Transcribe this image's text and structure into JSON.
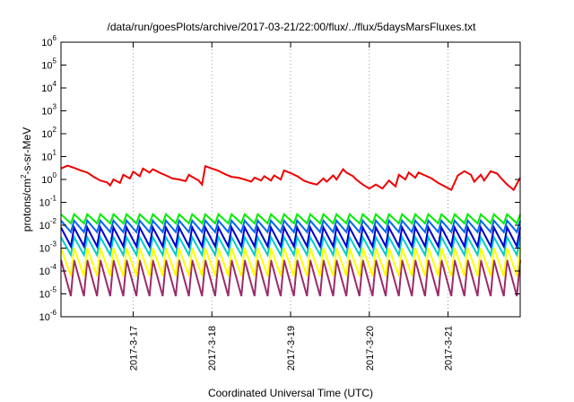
{
  "chart_data": {
    "type": "line",
    "title": "/data/run/goesPlots/archive/2017-03-21/22:00/flux/../flux/5daysMarsFluxes.txt",
    "xlabel": "Coordinated Universal Time (UTC)",
    "ylabel": {
      "base": "protons/cm",
      "sup": "2",
      "rest": "-s-sr-MeV"
    },
    "xlim": [
      "2017-03-16 02:00",
      "2017-03-21 22:00"
    ],
    "ylim": [
      1e-06,
      1000000.0
    ],
    "yscale": "log",
    "x_ticks": [
      "2017-3-17",
      "2017-3-18",
      "2017-3-19",
      "2017-3-20",
      "2017-3-21"
    ],
    "y_ticks": [
      {
        "base": "10",
        "exp": "-6"
      },
      {
        "base": "10",
        "exp": "-5"
      },
      {
        "base": "10",
        "exp": "-4"
      },
      {
        "base": "10",
        "exp": "-3"
      },
      {
        "base": "10",
        "exp": "-2"
      },
      {
        "base": "10",
        "exp": "-1"
      },
      {
        "base": "10",
        "exp": "0"
      },
      {
        "base": "10",
        "exp": "1"
      },
      {
        "base": "10",
        "exp": "2"
      },
      {
        "base": "10",
        "exp": "3"
      },
      {
        "base": "10",
        "exp": "4"
      },
      {
        "base": "10",
        "exp": "5"
      },
      {
        "base": "10",
        "exp": "6"
      }
    ],
    "grid": "x-only-dashed",
    "legend": "none",
    "series": [
      {
        "color": "#ee0000",
        "width": 2,
        "x": [
          "2017-03-16 02:00",
          "2017-03-16 04:00",
          "2017-03-16 06:00",
          "2017-03-16 08:00",
          "2017-03-16 10:00",
          "2017-03-16 12:00",
          "2017-03-16 14:00",
          "2017-03-16 16:00",
          "2017-03-16 17:00",
          "2017-03-16 18:00",
          "2017-03-16 20:00",
          "2017-03-16 21:00",
          "2017-03-16 23:00",
          "2017-03-17 00:00",
          "2017-03-17 02:00",
          "2017-03-17 03:00",
          "2017-03-17 05:00",
          "2017-03-17 06:00",
          "2017-03-17 08:00",
          "2017-03-17 10:00",
          "2017-03-17 12:00",
          "2017-03-17 14:00",
          "2017-03-17 16:00",
          "2017-03-17 17:00",
          "2017-03-17 18:00",
          "2017-03-17 20:00",
          "2017-03-17 21:00",
          "2017-03-17 22:00",
          "2017-03-18 00:00",
          "2017-03-18 02:00",
          "2017-03-18 04:00",
          "2017-03-18 06:00",
          "2017-03-18 08:00",
          "2017-03-18 10:00",
          "2017-03-18 12:00",
          "2017-03-18 13:00",
          "2017-03-18 15:00",
          "2017-03-18 16:00",
          "2017-03-18 18:00",
          "2017-03-18 19:00",
          "2017-03-18 21:00",
          "2017-03-18 22:00",
          "2017-03-19 00:00",
          "2017-03-19 02:00",
          "2017-03-19 04:00",
          "2017-03-19 06:00",
          "2017-03-19 08:00",
          "2017-03-19 10:00",
          "2017-03-19 11:00",
          "2017-03-19 13:00",
          "2017-03-19 14:00",
          "2017-03-19 16:00",
          "2017-03-19 17:00",
          "2017-03-19 19:00",
          "2017-03-19 20:00",
          "2017-03-19 22:00",
          "2017-03-20 00:00",
          "2017-03-20 02:00",
          "2017-03-20 04:00",
          "2017-03-20 06:00",
          "2017-03-20 08:00",
          "2017-03-20 09:00",
          "2017-03-20 11:00",
          "2017-03-20 12:00",
          "2017-03-20 14:00",
          "2017-03-20 15:00",
          "2017-03-20 17:00",
          "2017-03-20 19:00",
          "2017-03-20 21:00",
          "2017-03-20 23:00",
          "2017-03-21 01:00",
          "2017-03-21 03:00",
          "2017-03-21 05:00",
          "2017-03-21 07:00",
          "2017-03-21 08:00",
          "2017-03-21 10:00",
          "2017-03-21 11:00",
          "2017-03-21 13:00",
          "2017-03-21 15:00",
          "2017-03-21 16:00",
          "2017-03-21 18:00",
          "2017-03-21 20:00",
          "2017-03-21 22:00"
        ],
        "y": [
          3.0,
          4.0,
          3.2,
          2.5,
          2.0,
          1.3,
          0.9,
          0.75,
          0.55,
          1.0,
          0.7,
          1.6,
          1.1,
          2.2,
          1.4,
          3.0,
          2.0,
          2.8,
          2.0,
          1.5,
          1.1,
          1.0,
          0.85,
          1.6,
          1.3,
          0.9,
          0.6,
          3.8,
          3.0,
          2.4,
          1.7,
          1.3,
          1.2,
          1.0,
          0.8,
          1.2,
          0.9,
          1.4,
          0.9,
          1.5,
          1.0,
          2.5,
          1.9,
          1.4,
          0.9,
          0.7,
          0.6,
          1.1,
          0.8,
          1.5,
          1.0,
          2.8,
          2.0,
          1.4,
          1.0,
          0.6,
          0.4,
          0.6,
          0.4,
          0.9,
          0.5,
          1.6,
          1.0,
          2.0,
          1.2,
          2.0,
          1.5,
          1.1,
          0.7,
          0.5,
          0.35,
          1.5,
          2.3,
          1.6,
          0.8,
          1.6,
          0.9,
          2.3,
          1.8,
          1.2,
          0.6,
          0.35,
          1.2
        ]
      },
      {
        "color": "#00ee00",
        "width": 2,
        "period_hours": 4,
        "y_low": 0.012,
        "y_high": 0.03,
        "x_start": "2017-03-16 02:00",
        "x_end": "2017-03-21 22:00"
      },
      {
        "color": "#0066ee",
        "width": 2,
        "period_hours": 4,
        "y_low": 0.005,
        "y_high": 0.016,
        "x_start": "2017-03-16 02:00",
        "x_end": "2017-03-21 22:00"
      },
      {
        "color": "#0000cc",
        "width": 2,
        "period_hours": 4,
        "y_low": 0.0012,
        "y_high": 0.008,
        "x_start": "2017-03-16 02:00",
        "x_end": "2017-03-21 22:00"
      },
      {
        "color": "#00cccc",
        "width": 2,
        "period_hours": 4,
        "y_low": 0.0005,
        "y_high": 0.003,
        "x_start": "2017-03-16 02:00",
        "x_end": "2017-03-21 22:00"
      },
      {
        "color": "#ffff00",
        "width": 2,
        "period_hours": 4,
        "y_low": 6e-05,
        "y_high": 0.001,
        "x_start": "2017-03-16 02:00",
        "x_end": "2017-03-21 22:00"
      },
      {
        "color": "#9b2c6a",
        "width": 2,
        "period_hours": 4,
        "y_low": 8e-06,
        "y_high": 0.0003,
        "x_start": "2017-03-16 02:00",
        "x_end": "2017-03-21 22:00"
      }
    ]
  }
}
